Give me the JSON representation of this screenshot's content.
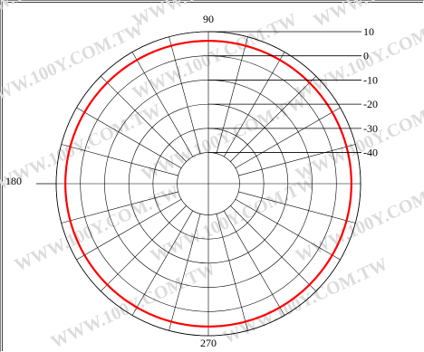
{
  "chart_data": {
    "type": "polar",
    "title": "",
    "angle_labels": [
      "90",
      "180",
      "270"
    ],
    "radial_ticks": [
      "10",
      "0",
      "-10",
      "-20",
      "-30",
      "-40"
    ],
    "radial_range": [
      -40,
      10
    ],
    "angle_grid_step_deg": 15,
    "radial_grid": [
      -40,
      -30,
      -20,
      -10,
      0,
      10
    ],
    "grid": true,
    "series": [
      {
        "color": "#ff0000",
        "angles_deg": [
          0,
          45,
          90,
          135,
          180,
          225,
          270,
          315
        ],
        "values": [
          6.2,
          6.2,
          6.2,
          6.2,
          6.2,
          6.2,
          6.2,
          6.2
        ]
      }
    ]
  },
  "watermark": "WWW.100Y.COM.TW",
  "colors": {
    "grid": "#000000",
    "series": "#ff0000",
    "watermark": "#dcdcdc"
  }
}
